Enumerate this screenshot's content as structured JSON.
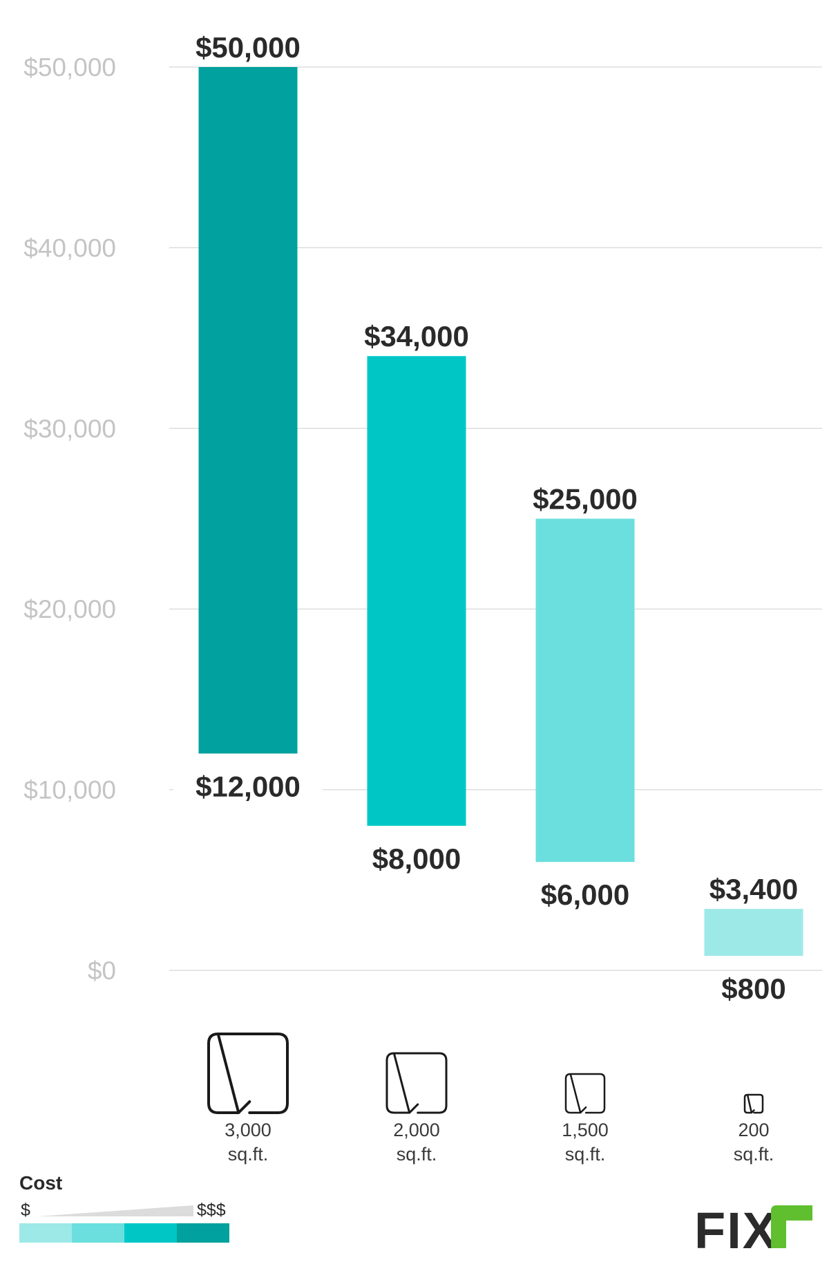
{
  "chart_data": {
    "type": "bar",
    "variant": "floating-range",
    "categories": [
      "3,000 sq.ft.",
      "2,000 sq.ft.",
      "1,500 sq.ft.",
      "200 sq.ft."
    ],
    "category_labels": [
      {
        "line1": "3,000",
        "line2": "sq.ft."
      },
      {
        "line1": "2,000",
        "line2": "sq.ft."
      },
      {
        "line1": "1,500",
        "line2": "sq.ft."
      },
      {
        "line1": "200",
        "line2": "sq.ft."
      }
    ],
    "ranges": [
      {
        "low": 12000,
        "high": 50000,
        "low_label": "$12,000",
        "high_label": "$50,000",
        "color": "#00a19e"
      },
      {
        "low": 8000,
        "high": 34000,
        "low_label": "$8,000",
        "high_label": "$34,000",
        "color": "#00c7c6"
      },
      {
        "low": 6000,
        "high": 25000,
        "low_label": "$6,000",
        "high_label": "$25,000",
        "color": "#6adfde"
      },
      {
        "low": 800,
        "high": 3400,
        "low_label": "$800",
        "high_label": "$3,400",
        "color": "#9de9e8"
      }
    ],
    "yticks": [
      0,
      10000,
      20000,
      30000,
      40000,
      50000
    ],
    "ytick_labels": [
      "$0",
      "$10,000",
      "$20,000",
      "$30,000",
      "$40,000",
      "$50,000"
    ],
    "ylim": [
      0,
      50000
    ],
    "grid": true,
    "title": "",
    "xlabel": "",
    "ylabel": ""
  },
  "legend": {
    "title": "Cost",
    "low_symbol": "$",
    "high_symbol": "$$$",
    "colors": [
      "#9de9e8",
      "#6adfde",
      "#00c7c6",
      "#00a19e"
    ],
    "wedge_color": "#dcdcdc"
  },
  "logo": {
    "text": "FIX",
    "accent_color": "#5fbf2f"
  },
  "icons": [
    "room-size-icon",
    "room-size-icon",
    "room-size-icon",
    "room-size-icon"
  ]
}
